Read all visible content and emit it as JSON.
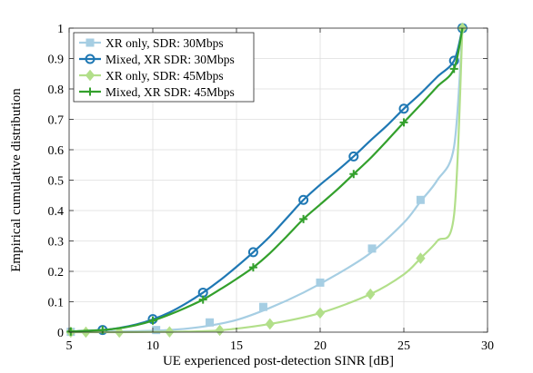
{
  "chart_data": {
    "type": "line",
    "title": "",
    "xlabel": "UE experienced post-detection SINR [dB]",
    "ylabel": "Empirical cumulative distribution",
    "xlim": [
      5,
      30
    ],
    "ylim": [
      0,
      1
    ],
    "xticks": [
      5,
      10,
      15,
      20,
      25,
      30
    ],
    "yticks": [
      0,
      0.1,
      0.2,
      0.3,
      0.4,
      0.5,
      0.6,
      0.7,
      0.8,
      0.9,
      1
    ],
    "xtick_labels": [
      "5",
      "10",
      "15",
      "20",
      "25",
      "30"
    ],
    "ytick_labels": [
      "0",
      "0.1",
      "0.2",
      "0.3",
      "0.4",
      "0.5",
      "0.6",
      "0.7",
      "0.8",
      "0.9",
      "1"
    ],
    "grid": true,
    "legend_position": "top-left",
    "series": [
      {
        "name": "XR only, SDR: 30Mbps",
        "color": "#a6cee3",
        "marker": "square",
        "x": [
          5.1,
          7,
          9,
          11,
          13,
          15,
          17,
          19,
          21,
          23,
          25,
          26,
          27,
          28,
          28.5
        ],
        "y": [
          0.001,
          0.002,
          0.003,
          0.007,
          0.018,
          0.04,
          0.08,
          0.13,
          0.19,
          0.26,
          0.36,
          0.43,
          0.5,
          0.61,
          1.0
        ],
        "markers_x": [
          5.1,
          10.2,
          13.4,
          16.6,
          20,
          23.1,
          26,
          28.5
        ],
        "markers_y": [
          0.001,
          0.007,
          0.032,
          0.083,
          0.163,
          0.275,
          0.435,
          1.0
        ]
      },
      {
        "name": "Mixed, XR SDR: 30Mbps",
        "color": "#1f78b4",
        "marker": "circle",
        "x": [
          5.1,
          7,
          8,
          9,
          10,
          11,
          12,
          13,
          14,
          15,
          16,
          17,
          18,
          19,
          20,
          21,
          22,
          23,
          24,
          25,
          26,
          27,
          28,
          28.5
        ],
        "y": [
          0.002,
          0.007,
          0.014,
          0.025,
          0.042,
          0.065,
          0.095,
          0.13,
          0.17,
          0.215,
          0.263,
          0.315,
          0.375,
          0.435,
          0.485,
          0.53,
          0.578,
          0.63,
          0.68,
          0.735,
          0.785,
          0.84,
          0.893,
          1.0
        ],
        "markers_x": [
          7,
          10,
          13,
          16,
          19,
          22,
          25,
          28,
          28.5
        ],
        "markers_y": [
          0.007,
          0.043,
          0.13,
          0.263,
          0.435,
          0.578,
          0.735,
          0.893,
          1.0
        ]
      },
      {
        "name": "XR only, SDR: 45Mbps",
        "color": "#b2df8a",
        "marker": "diamond",
        "x": [
          5.1,
          6,
          8,
          10,
          12,
          14,
          17,
          20,
          23,
          25,
          26,
          27,
          28,
          28.5
        ],
        "y": [
          0.0,
          0.0,
          0.0,
          0.001,
          0.002,
          0.006,
          0.027,
          0.063,
          0.125,
          0.19,
          0.243,
          0.3,
          0.385,
          1.0
        ],
        "markers_x": [
          5.1,
          6,
          8,
          11,
          14,
          17,
          20,
          23,
          26,
          28.5
        ],
        "markers_y": [
          0.0,
          0.0,
          0.0,
          0.001,
          0.006,
          0.027,
          0.063,
          0.125,
          0.243,
          1.0
        ]
      },
      {
        "name": "Mixed, XR SDR: 45Mbps",
        "color": "#33a02c",
        "marker": "plus",
        "x": [
          5.1,
          7,
          8,
          9,
          10,
          11,
          12,
          13,
          14,
          15,
          16,
          17,
          18,
          19,
          20,
          21,
          22,
          23,
          24,
          25,
          26,
          27,
          28,
          28.5
        ],
        "y": [
          0.002,
          0.007,
          0.013,
          0.023,
          0.038,
          0.058,
          0.081,
          0.107,
          0.14,
          0.175,
          0.213,
          0.26,
          0.315,
          0.372,
          0.42,
          0.468,
          0.52,
          0.572,
          0.63,
          0.69,
          0.748,
          0.808,
          0.866,
          1.0
        ],
        "markers_x": [
          5.1,
          7,
          10,
          13,
          16,
          19,
          22,
          25,
          28
        ],
        "markers_y": [
          0.002,
          0.007,
          0.038,
          0.107,
          0.213,
          0.372,
          0.52,
          0.69,
          0.866
        ]
      }
    ]
  }
}
